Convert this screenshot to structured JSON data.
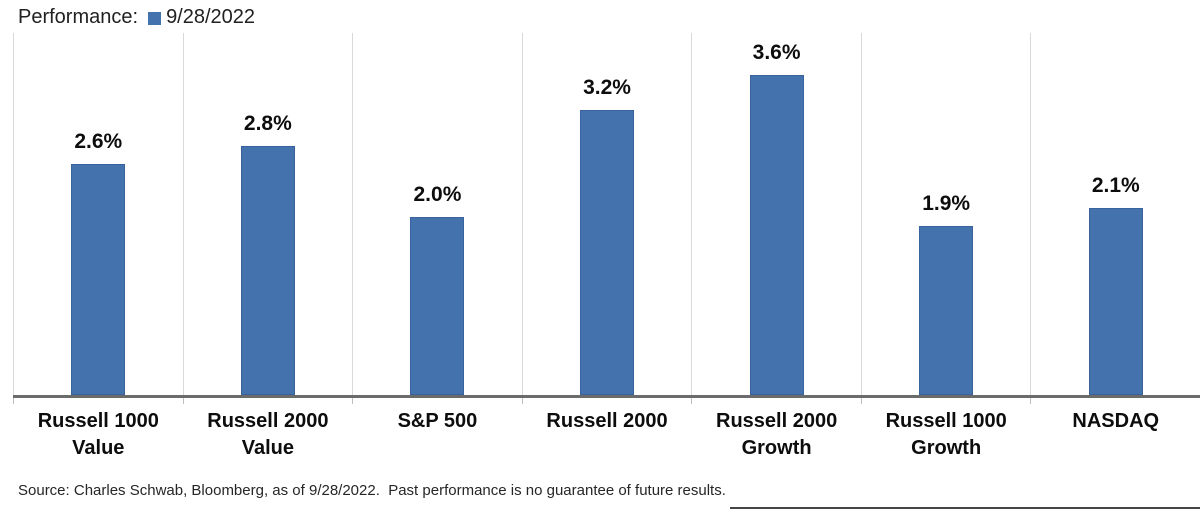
{
  "header": {
    "title": "Performance:",
    "legend": {
      "label": "9/28/2022",
      "swatch_color": "#4472AC"
    }
  },
  "chart_data": {
    "type": "bar",
    "title": "Performance",
    "series_name": "9/28/2022",
    "categories": [
      "Russell 1000 Value",
      "Russell 2000 Value",
      "S&P 500",
      "Russell 2000",
      "Russell 2000 Growth",
      "Russell 1000 Growth",
      "NASDAQ"
    ],
    "values": [
      2.6,
      2.8,
      2.0,
      3.2,
      3.6,
      1.9,
      2.1
    ],
    "value_labels": [
      "2.6%",
      "2.8%",
      "2.0%",
      "3.2%",
      "3.6%",
      "1.9%",
      "2.1%"
    ],
    "unit": "%",
    "xlabel": "",
    "ylabel": "",
    "ylim": [
      0,
      4.07
    ],
    "bar_color": "#4472AC",
    "bar_border_color": "#3a639e",
    "grid": "vertical category separators only",
    "gridline_color": "#d9d9d9",
    "axis_line_color": "#6b6b6b",
    "legend_position": "top-left",
    "value_labels_shown": true
  },
  "footer": {
    "source_text": "Source: Charles Schwab, Bloomberg, as of 9/28/2022.  Past performance is no guarantee of future results."
  }
}
